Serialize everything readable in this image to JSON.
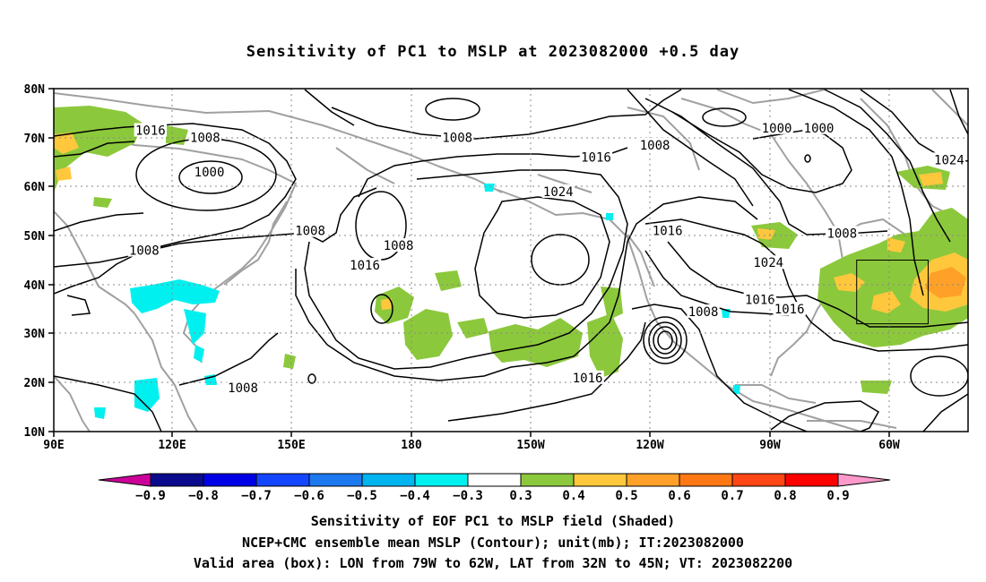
{
  "title": "Sensitivity of PC1 to MSLP at 2023082000 +0.5 day",
  "map": {
    "lat_labels": [
      "80N",
      "70N",
      "60N",
      "50N",
      "40N",
      "30N",
      "20N",
      "10N"
    ],
    "lon_labels": [
      "90E",
      "120E",
      "150E",
      "180",
      "150W",
      "120W",
      "90W",
      "60W"
    ],
    "lat_range": [
      10,
      80
    ],
    "lon_range": [
      90,
      307.5
    ],
    "valid_box": {
      "lon_w": "79W",
      "lon_e": "62W",
      "lat_s": "32N",
      "lat_n": "45N"
    }
  },
  "contour_labels": [
    {
      "text": "1016",
      "lon": 113,
      "lat": 71.5
    },
    {
      "text": "1008",
      "lon": 126,
      "lat": 70
    },
    {
      "text": "1000",
      "lon": 127,
      "lat": 63
    },
    {
      "text": "1008",
      "lon": 111.5,
      "lat": 47
    },
    {
      "text": "1008",
      "lon": 151,
      "lat": 51
    },
    {
      "text": "1016",
      "lon": 164,
      "lat": 44
    },
    {
      "text": "1008",
      "lon": 172,
      "lat": 48
    },
    {
      "text": "1008",
      "lon": 186,
      "lat": 70
    },
    {
      "text": "1024",
      "lon": 210,
      "lat": 59
    },
    {
      "text": "1016",
      "lon": 219,
      "lat": 66
    },
    {
      "text": "1008",
      "lon": 233,
      "lat": 68.5
    },
    {
      "text": "1016",
      "lon": 236,
      "lat": 51
    },
    {
      "text": "1024",
      "lon": 260,
      "lat": 44.5
    },
    {
      "text": "1016",
      "lon": 258,
      "lat": 37
    },
    {
      "text": "1016",
      "lon": 265,
      "lat": 35
    },
    {
      "text": "1008",
      "lon": 244.5,
      "lat": 34.5
    },
    {
      "text": "1000",
      "lon": 262,
      "lat": 72
    },
    {
      "text": "1000",
      "lon": 272,
      "lat": 72
    },
    {
      "text": "1008",
      "lon": 277.5,
      "lat": 50.5
    },
    {
      "text": "1024",
      "lon": 303,
      "lat": 65.5
    },
    {
      "text": "1016",
      "lon": 217,
      "lat": 21
    },
    {
      "text": "1008",
      "lon": 135,
      "lat": 19
    }
  ],
  "colorbar": {
    "ticks": [
      "−0.9",
      "−0.8",
      "−0.7",
      "−0.6",
      "−0.5",
      "−0.4",
      "−0.3",
      "0.3",
      "0.4",
      "0.5",
      "0.6",
      "0.7",
      "0.8",
      "0.9"
    ],
    "colors": [
      "#0a0a8c",
      "#0000e6",
      "#1446ff",
      "#1e78f0",
      "#00b4f0",
      "#00f0f0",
      "#ffffff",
      "#8cc83c",
      "#ffc83c",
      "#ffa028",
      "#ff7814",
      "#ff4614",
      "#ff0000"
    ],
    "low_color": "#cc0099",
    "high_color": "#ff99cc"
  },
  "captions": {
    "line1": "Sensitivity of EOF PC1 to MSLP field (Shaded)",
    "line2": "NCEP+CMC ensemble mean MSLP (Contour); unit(mb); IT:2023082000",
    "line3": "Valid area (box): LON from 79W to 62W, LAT from 32N to 45N; VT: 2023082200"
  },
  "colors": {
    "contour": "#000000",
    "coast": "#a0a0a0",
    "grid": "#888888",
    "positive_shade": "#8cc83c",
    "negative_shade": "#00f0f0"
  }
}
